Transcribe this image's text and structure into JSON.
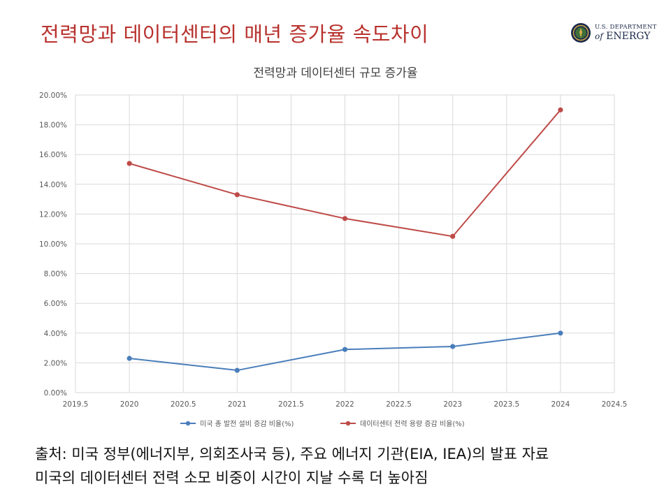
{
  "slide": {
    "title": "전력망과 데이터센터의 매년 증가율 속도차이",
    "caption_lines": [
      "출처: 미국 정부(에너지부, 의회조사국 등), 주요 에너지 기관(EIA, IEA)의 발표 자료",
      "미국의 데이터센터 전력 소모 비중이 시간이 지날 수록 더 높아짐"
    ]
  },
  "logo": {
    "line1": "U.S. DEPARTMENT",
    "line2_of": "of",
    "line2_main": "ENERGY",
    "colors": {
      "seal_outer": "#1c2a4a",
      "seal_inner": "#3f6f3a",
      "seal_ring": "#d9b24a"
    }
  },
  "chart_data": {
    "type": "scatter",
    "title": "전력망과 데이터센터 규모 증가율",
    "xlim": [
      2019.5,
      2024.5
    ],
    "x_ticks": [
      "2019.5",
      "2020",
      "2020.5",
      "2021",
      "2021.5",
      "2022",
      "2022.5",
      "2023",
      "2023.5",
      "2024",
      "2024.5"
    ],
    "ylim": [
      0,
      20
    ],
    "y_ticks": [
      "0.00%",
      "2.00%",
      "4.00%",
      "6.00%",
      "8.00%",
      "10.00%",
      "12.00%",
      "14.00%",
      "16.00%",
      "18.00%",
      "20.00%"
    ],
    "grid": true,
    "legend_position": "bottom",
    "series": [
      {
        "name": "미국 총 발전 설비 증감 비율(%)",
        "color": "#4a7ebb",
        "x": [
          2020,
          2021,
          2022,
          2023,
          2024
        ],
        "y": [
          2.3,
          1.5,
          2.9,
          3.1,
          4.0
        ]
      },
      {
        "name": "데이터센터 전력 용량 증감 비율(%)",
        "color": "#be4b48",
        "x": [
          2020,
          2021,
          2022,
          2023,
          2024
        ],
        "y": [
          15.4,
          13.3,
          11.7,
          10.5,
          19.0
        ]
      }
    ]
  }
}
